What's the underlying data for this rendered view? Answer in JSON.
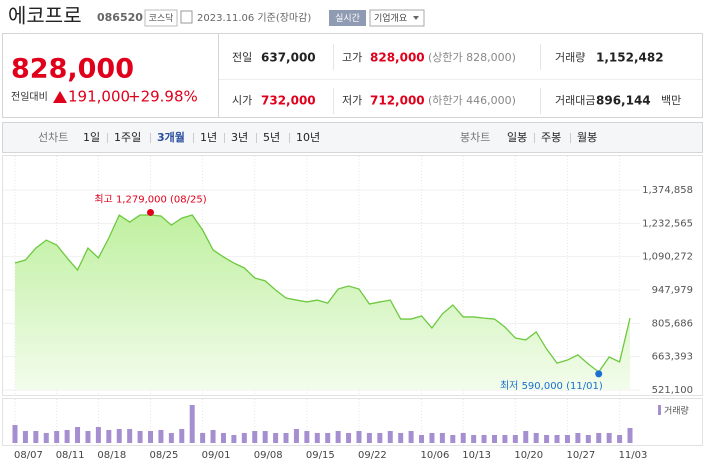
{
  "header": {
    "name": "에코프로",
    "code": "086520",
    "market": "코스닥",
    "date": "2023.11.06 기준(장마감)",
    "realtime": "실시간",
    "company_info": "기업개요"
  },
  "quote": {
    "price": "828,000",
    "change_label": "전일대비",
    "change": "191,000",
    "change_pct": "+29.98%",
    "rows": [
      [
        {
          "label": "전일",
          "value": "637,000"
        },
        {
          "label": "고가",
          "value": "828,000",
          "note": "(상한가 828,000)"
        },
        {
          "label": "거래량",
          "value": "1,152,482"
        }
      ],
      [
        {
          "label": "시가",
          "value": "732,000"
        },
        {
          "label": "저가",
          "value": "712,000",
          "note": "(하한가 446,000)"
        },
        {
          "label": "거래대금",
          "value": "896,144",
          "unit": "백만"
        }
      ]
    ]
  },
  "tabs": {
    "line_label": "선차트",
    "periods": [
      "1일",
      "1주일",
      "3개월",
      "1년",
      "3년",
      "5년",
      "10년"
    ],
    "selected": 2,
    "candle_label": "봉차트",
    "candles": [
      "일봉",
      "주봉",
      "월봉"
    ]
  },
  "chart_data": {
    "type": "area",
    "color": "#6dc93e",
    "categories": [
      "08/07",
      null,
      null,
      null,
      "08/11",
      null,
      null,
      null,
      "08/18",
      null,
      null,
      null,
      null,
      "08/25",
      null,
      null,
      null,
      null,
      "09/01",
      null,
      null,
      null,
      null,
      "09/08",
      null,
      null,
      null,
      null,
      "09/15",
      null,
      null,
      null,
      null,
      "09/22",
      null,
      null,
      null,
      null,
      null,
      "10/06",
      null,
      null,
      null,
      "10/13",
      null,
      null,
      null,
      null,
      "10/20",
      null,
      null,
      null,
      null,
      "10/27",
      null,
      null,
      null,
      null,
      "11/03",
      null
    ],
    "values": [
      1063000,
      1076000,
      1127000,
      1161000,
      1140000,
      1085000,
      1033000,
      1127000,
      1085000,
      1170000,
      1268000,
      1238000,
      1268000,
      1268000,
      1264000,
      1225000,
      1255000,
      1268000,
      1204000,
      1119000,
      1089000,
      1063000,
      1042000,
      999000,
      987000,
      948000,
      914000,
      905000,
      897000,
      905000,
      892000,
      952000,
      965000,
      952000,
      888000,
      897000,
      905000,
      824000,
      824000,
      837000,
      786000,
      846000,
      884000,
      833000,
      833000,
      828000,
      824000,
      790000,
      743000,
      735000,
      769000,
      696000,
      636000,
      649000,
      671000,
      632000,
      598000,
      662000,
      641000,
      828000
    ],
    "ylim": [
      521100,
      1374858
    ],
    "yticks": [
      {
        "value": 521100,
        "label": "521,100"
      },
      {
        "value": 663393,
        "label": "663,393"
      },
      {
        "value": 805686,
        "label": "805,686"
      },
      {
        "value": 947979,
        "label": "947,979"
      },
      {
        "value": 1090272,
        "label": "1,090,272"
      },
      {
        "value": 1232565,
        "label": "1,232,565"
      },
      {
        "value": 1374858,
        "label": "1,374,858"
      }
    ],
    "grid": true,
    "high": {
      "label": "최고 1,279,000 (08/25)",
      "value": 1279000,
      "index": 13,
      "color": "#e0001b"
    },
    "low": {
      "label": "최저 590,000 (11/01)",
      "value": 590000,
      "index": 56,
      "color": "#1a6fd1"
    },
    "volume": {
      "name": "거래량",
      "color": "#a58fd0",
      "ylim": [
        0,
        3300000
      ],
      "values": [
        1383000,
        922000,
        922000,
        768000,
        922000,
        999000,
        1229000,
        922000,
        1229000,
        999000,
        1076000,
        1076000,
        922000,
        922000,
        999000,
        768000,
        1076000,
        2920000,
        768000,
        999000,
        768000,
        615000,
        768000,
        922000,
        922000,
        768000,
        768000,
        1076000,
        922000,
        768000,
        768000,
        922000,
        768000,
        922000,
        768000,
        768000,
        922000,
        768000,
        922000,
        615000,
        768000,
        768000,
        615000,
        768000,
        615000,
        615000,
        615000,
        615000,
        615000,
        922000,
        768000,
        615000,
        615000,
        615000,
        768000,
        615000,
        768000,
        768000,
        615000,
        1152482
      ]
    }
  }
}
